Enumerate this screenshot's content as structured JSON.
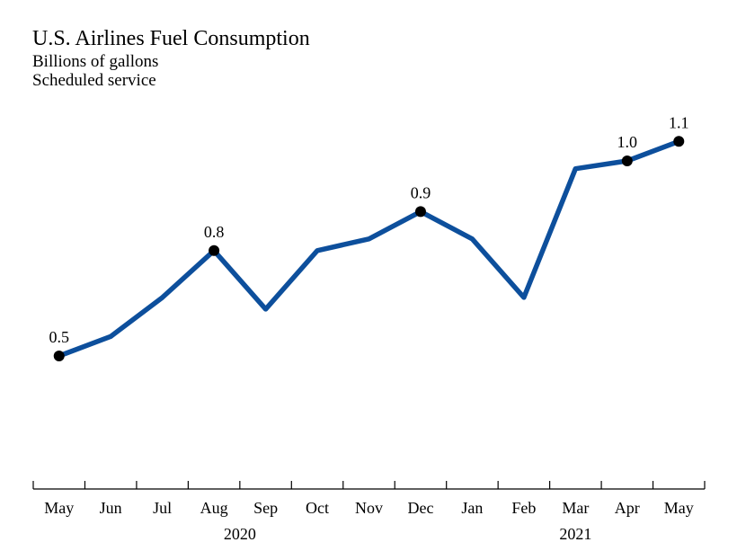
{
  "chart_data": {
    "type": "line",
    "title": "U.S. Airlines Fuel Consumption",
    "subtitle_lines": [
      "Billions of gallons",
      "Scheduled service"
    ],
    "categories": [
      "May",
      "Jun",
      "Jul",
      "Aug",
      "Sep",
      "Oct",
      "Nov",
      "Dec",
      "Jan",
      "Feb",
      "Mar",
      "Apr",
      "May"
    ],
    "year_labels": [
      {
        "label": "2020",
        "from_index": 0,
        "to_index": 7
      },
      {
        "label": "2021",
        "from_index": 8,
        "to_index": 12
      }
    ],
    "series": [
      {
        "values": [
          0.53,
          0.58,
          0.68,
          0.8,
          0.65,
          0.8,
          0.83,
          0.9,
          0.83,
          0.68,
          1.01,
          1.03,
          1.08
        ]
      }
    ],
    "labeled_points": [
      {
        "index": 0,
        "label": "0.5"
      },
      {
        "index": 3,
        "label": "0.8"
      },
      {
        "index": 7,
        "label": "0.9"
      },
      {
        "index": 11,
        "label": "1.0"
      },
      {
        "index": 12,
        "label": "1.1"
      }
    ],
    "line_color": "#0d4f9c",
    "marker_color": "#000000",
    "grid": false,
    "legend": "none"
  }
}
